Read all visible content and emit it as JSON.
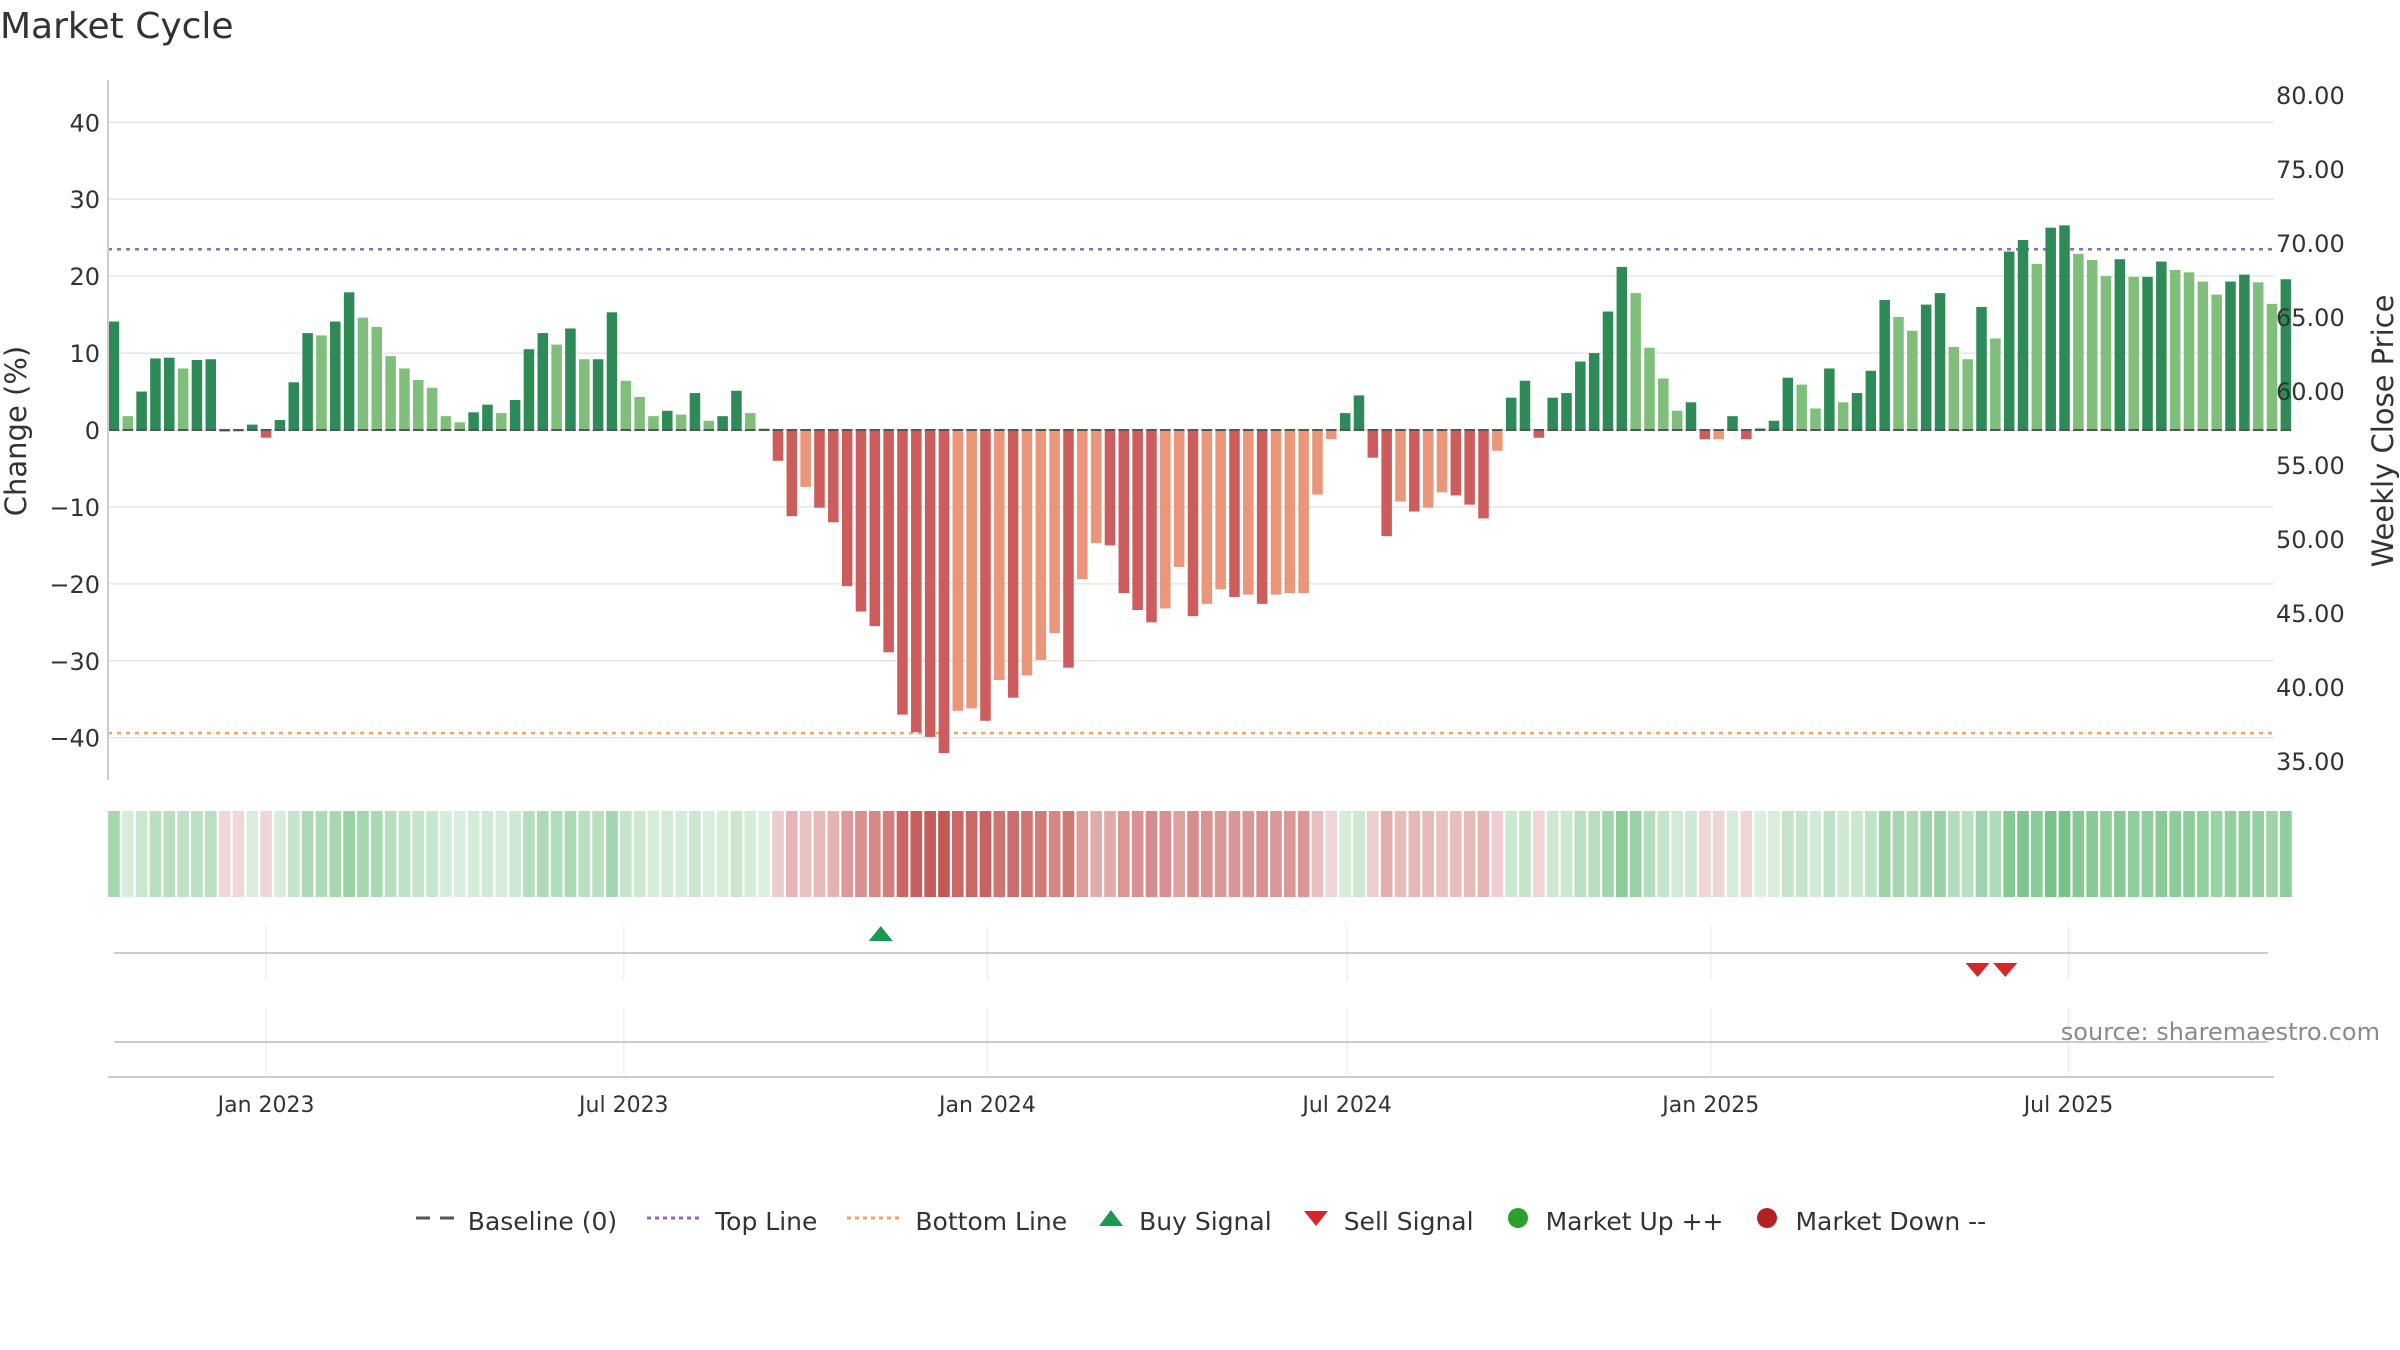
{
  "chart_data": {
    "type": "bar",
    "title": "Market Cycle",
    "ylabel_left": "Change (%)",
    "ylabel_right": "Weekly Close Price",
    "source_text": "source: sharemaestro.com",
    "y_left_ticks": [
      "40",
      "30",
      "20",
      "10",
      "0",
      "−10",
      "−20",
      "−30",
      "−40"
    ],
    "y_left_tick_values": [
      40,
      30,
      20,
      10,
      0,
      -10,
      -20,
      -30,
      -40
    ],
    "ylim_left": [
      -45.5,
      45.5
    ],
    "y_right_ticks": [
      "80.00",
      "75.00",
      "70.00",
      "65.00",
      "60.00",
      "55.00",
      "50.00",
      "45.00",
      "40.00",
      "35.00"
    ],
    "x_ticks": [
      {
        "label": "Jan 2023",
        "date": "2023-01-01"
      },
      {
        "label": "Jul 2023",
        "date": "2023-07-01"
      },
      {
        "label": "Jan 2024",
        "date": "2024-01-01"
      },
      {
        "label": "Jul 2024",
        "date": "2024-07-01"
      },
      {
        "label": "Jan 2025",
        "date": "2025-01-01"
      },
      {
        "label": "Jul 2025",
        "date": "2025-07-01"
      }
    ],
    "xlim": [
      "2022-10-13",
      "2025-10-13"
    ],
    "first_week": "2022-10-16",
    "weekly_change": [
      14.1,
      1.8,
      5.0,
      9.3,
      9.4,
      8.0,
      9.1,
      9.2,
      -0.2,
      -0.2,
      0.7,
      -1.0,
      1.3,
      6.2,
      12.6,
      12.3,
      14.1,
      17.9,
      14.6,
      13.4,
      9.6,
      8.0,
      6.5,
      5.5,
      1.8,
      1.0,
      2.3,
      3.3,
      2.2,
      3.9,
      10.5,
      12.6,
      11.1,
      13.2,
      9.2,
      9.2,
      15.3,
      6.4,
      4.3,
      1.8,
      2.5,
      2.0,
      4.8,
      1.2,
      1.8,
      5.1,
      2.2,
      0.2,
      -4.0,
      -11.2,
      -7.4,
      -10.1,
      -12.0,
      -20.3,
      -23.6,
      -25.5,
      -28.9,
      -37.0,
      -39.3,
      -39.9,
      -42.0,
      -36.5,
      -36.2,
      -37.8,
      -32.5,
      -34.8,
      -31.9,
      -29.9,
      -26.4,
      -30.9,
      -19.4,
      -14.7,
      -15.0,
      -21.2,
      -23.4,
      -25.0,
      -23.2,
      -17.8,
      -24.2,
      -22.6,
      -20.7,
      -21.7,
      -21.4,
      -22.6,
      -21.4,
      -21.2,
      -21.2,
      -8.4,
      -1.2,
      2.2,
      4.5,
      -3.6,
      -13.8,
      -9.3,
      -10.6,
      -10.1,
      -8.1,
      -8.5,
      -9.7,
      -11.5,
      -2.7,
      4.2,
      6.4,
      -1.0,
      4.2,
      4.8,
      8.9,
      10.0,
      15.4,
      21.2,
      17.8,
      10.7,
      6.7,
      2.5,
      3.6,
      -1.2,
      -1.2,
      1.8,
      -1.2,
      0.2,
      1.2,
      6.8,
      5.9,
      2.8,
      8.0,
      3.6,
      4.8,
      7.7,
      16.9,
      14.7,
      12.9,
      16.3,
      17.8,
      10.8,
      9.2,
      16.0,
      11.9,
      23.2,
      24.7,
      21.6,
      26.3,
      26.6,
      22.9,
      22.1,
      20.0,
      22.2,
      19.9,
      19.9,
      21.9,
      20.8,
      20.5,
      19.3,
      17.6,
      19.3,
      20.2,
      19.2,
      16.4,
      19.6
    ],
    "series": [
      {
        "name": "Baseline (0)",
        "value": 0,
        "style": "dashed",
        "color": "#555555"
      },
      {
        "name": "Top Line",
        "value": 23.5,
        "style": "dotted",
        "color": "#9467bd"
      },
      {
        "name": "Bottom Line",
        "value": -39.4,
        "style": "dotted",
        "color": "#f4a460"
      },
      {
        "name": "Buy Signal",
        "marker": "triangle-up",
        "color": "#1a9850",
        "dates": [
          "2023-11-08"
        ]
      },
      {
        "name": "Sell Signal",
        "marker": "triangle-down",
        "color": "#d62728",
        "dates": [
          "2025-05-16",
          "2025-05-30"
        ]
      },
      {
        "name": "Market Up ++",
        "marker": "circle",
        "color": "#2ca02c",
        "dates": []
      },
      {
        "name": "Market Down --",
        "marker": "circle",
        "color": "#b22222",
        "dates": []
      }
    ],
    "grid": true,
    "legend_position": "bottom-center",
    "colors": {
      "up_strong": "#2e8b57",
      "up_light": "#7fbf7b",
      "down_strong": "#cd5c5c",
      "down_light": "#e9967a",
      "grid": "#e6e6e6"
    }
  }
}
